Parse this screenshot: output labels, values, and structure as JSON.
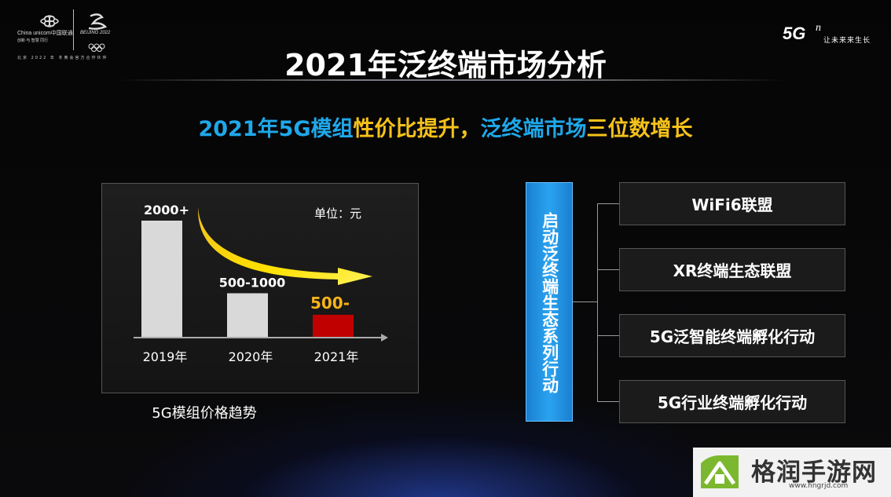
{
  "header": {
    "unicom_logo_text": "China unicom中国联通",
    "unicom_logo_subtext": "创新 与 智慧 同行",
    "beijing_logo_text": "BEIJING 2022",
    "tagline": "北京 2022 年 冬奥会官方合作伙伴",
    "brand_5g": "5G",
    "brand_n": "n",
    "brand_slogan": "让未来来生长",
    "title": "2021年泛终端市场分析"
  },
  "subtitle": {
    "part1": "2021年5G模组",
    "part2": "性价比提升，",
    "part3": "泛终端市场",
    "part4": "三位数增长"
  },
  "chart_data": {
    "type": "bar",
    "categories": [
      "2019年",
      "2020年",
      "2021年"
    ],
    "values": [
      2000,
      750,
      380
    ],
    "data_labels": [
      "2000+",
      "500-1000",
      "500-"
    ],
    "unit_label": "单位：元",
    "caption": "5G模组价格趋势",
    "colors": [
      "#d9d9d9",
      "#d9d9d9",
      "#c00000"
    ],
    "label_colors": [
      "#ffffff",
      "#ffffff",
      "#f6b31a"
    ],
    "ylim": [
      0,
      2000
    ]
  },
  "initiative": {
    "label": "启动泛终端生态系列行动",
    "items": [
      "WiFi6联盟",
      "XR终端生态联盟",
      "5G泛智能终端孵化行动",
      "5G行业终端孵化行动"
    ]
  },
  "watermark": {
    "text": "格润手游网",
    "url": "www.hngrjd.com"
  },
  "colors": {
    "accent_blue": "#1fa8ea",
    "accent_gold": "#f6c21a",
    "bar_highlight": "#c00000"
  }
}
